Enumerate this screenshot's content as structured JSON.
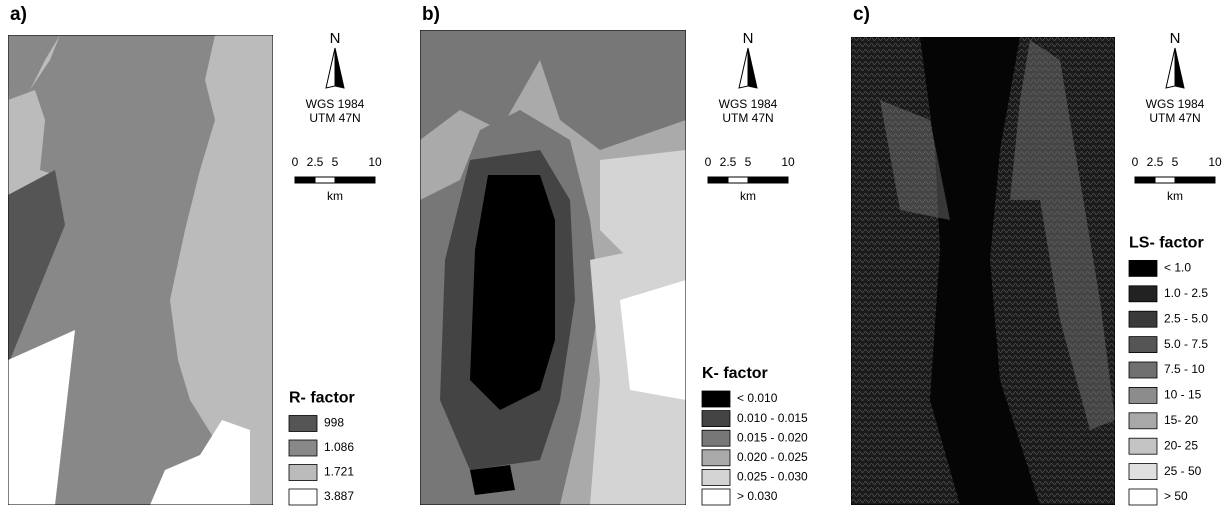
{
  "panels": [
    {
      "label": "a)",
      "north": "N",
      "crs": [
        "WGS 1984",
        "UTM 47N"
      ],
      "scale": {
        "ticks": [
          0,
          2.5,
          5,
          10
        ],
        "unit": "km"
      },
      "legend": {
        "title": "R- factor",
        "items": [
          {
            "label": "998",
            "color": "#555555"
          },
          {
            "label": "1.086",
            "color": "#888888"
          },
          {
            "label": "1.721",
            "color": "#bbbbbb"
          },
          {
            "label": "3.887",
            "color": "#ffffff"
          }
        ]
      }
    },
    {
      "label": "b)",
      "north": "N",
      "crs": [
        "WGS 1984",
        "UTM 47N"
      ],
      "scale": {
        "ticks": [
          0,
          2.5,
          5,
          10
        ],
        "unit": "km"
      },
      "legend": {
        "title": "K- factor",
        "items": [
          {
            "label": "< 0.010",
            "color": "#000000"
          },
          {
            "label": "0.010 - 0.015",
            "color": "#444444"
          },
          {
            "label": "0.015 - 0.020",
            "color": "#777777"
          },
          {
            "label": "0.020 - 0.025",
            "color": "#aaaaaa"
          },
          {
            "label": "0.025 - 0.030",
            "color": "#d4d4d4"
          },
          {
            "label": "> 0.030",
            "color": "#ffffff"
          }
        ]
      }
    },
    {
      "label": "c)",
      "north": "N",
      "crs": [
        "WGS 1984",
        "UTM 47N"
      ],
      "scale": {
        "ticks": [
          0,
          2.5,
          5,
          10
        ],
        "unit": "km"
      },
      "legend": {
        "title": "LS- factor",
        "items": [
          {
            "label": "< 1.0",
            "color": "#000000"
          },
          {
            "label": "1.0 - 2.5",
            "color": "#222222"
          },
          {
            "label": "2.5 - 5.0",
            "color": "#3a3a3a"
          },
          {
            "label": "5.0 - 7.5",
            "color": "#555555"
          },
          {
            "label": "7.5 - 10",
            "color": "#707070"
          },
          {
            "label": "10 - 15",
            "color": "#8c8c8c"
          },
          {
            "label": "15- 20",
            "color": "#a8a8a8"
          },
          {
            "label": "20- 25",
            "color": "#c4c4c4"
          },
          {
            "label": "25 - 50",
            "color": "#e0e0e0"
          },
          {
            "label": "> 50",
            "color": "#ffffff"
          }
        ]
      }
    }
  ]
}
